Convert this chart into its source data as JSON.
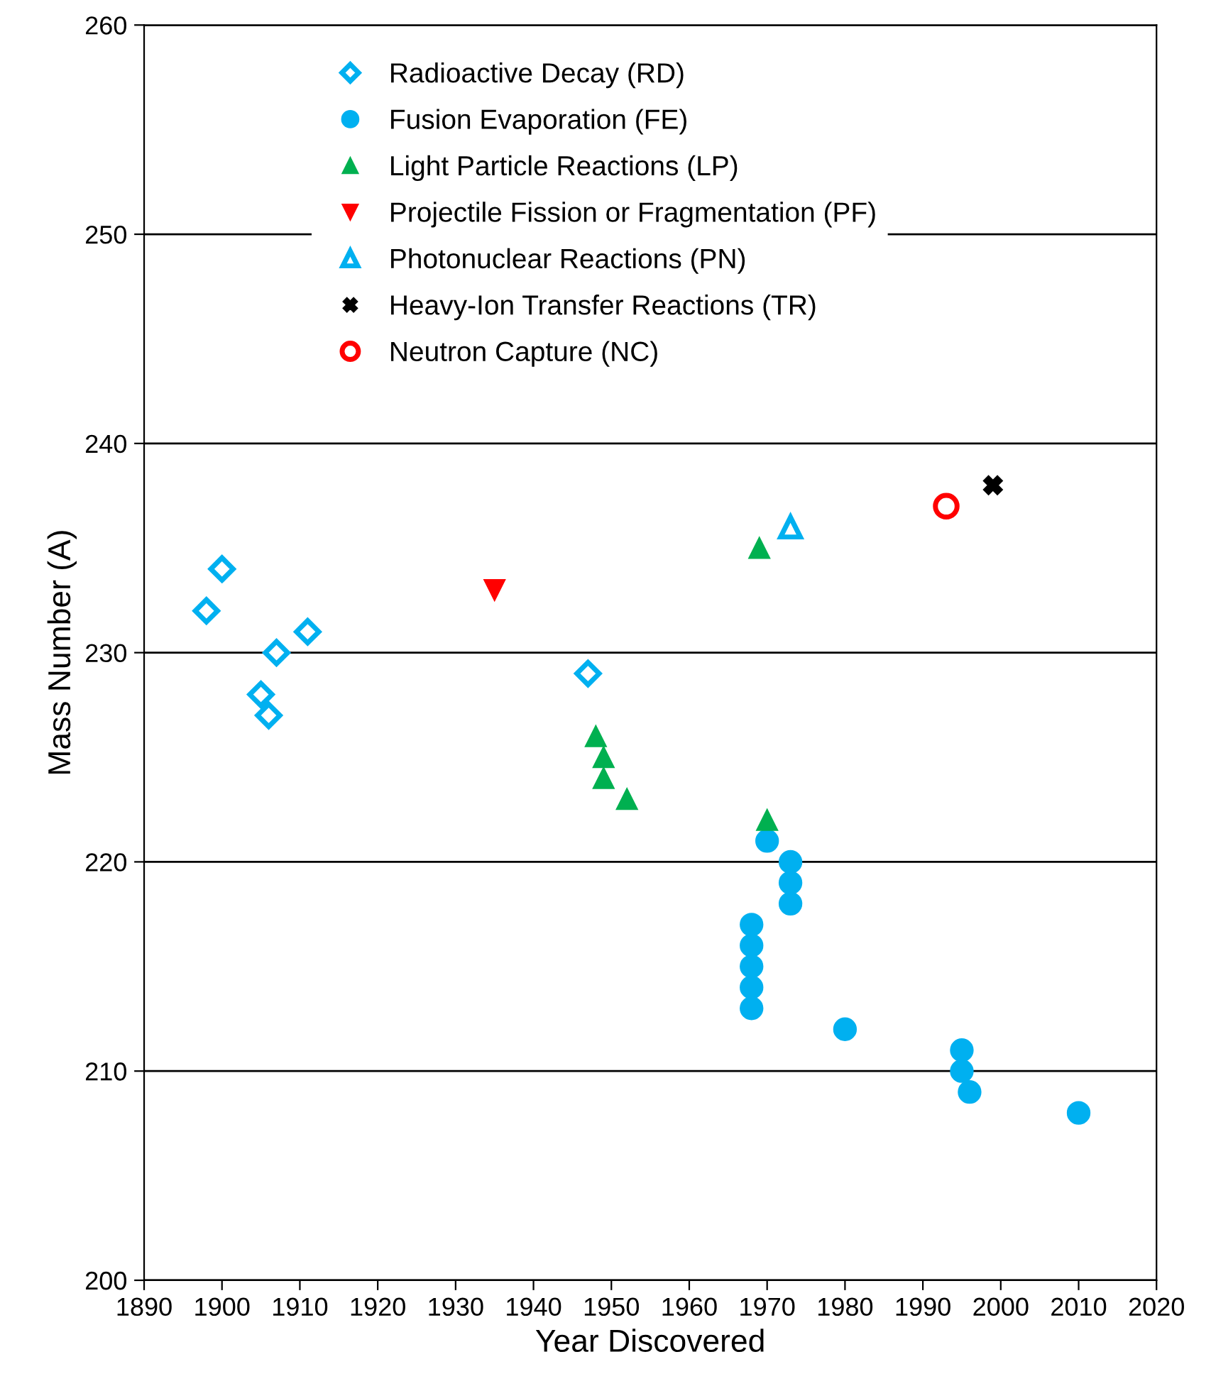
{
  "chart_data": {
    "type": "scatter",
    "xlabel": "Year Discovered",
    "ylabel": "Mass Number (A)",
    "xlim": [
      1890,
      2020
    ],
    "xticks": [
      1890,
      1900,
      1910,
      1920,
      1930,
      1940,
      1950,
      1960,
      1970,
      1980,
      1990,
      2000,
      2010,
      2020
    ],
    "ylim": [
      200,
      260
    ],
    "yticks": [
      200,
      210,
      220,
      230,
      240,
      250,
      260
    ],
    "grid": "y",
    "legend": "top",
    "series": [
      {
        "name": "Radioactive Decay (RD)",
        "color": "#00b0f0",
        "marker": "diamond_open",
        "x": [
          1898,
          1900,
          1905,
          1906,
          1907,
          1911,
          1947
        ],
        "values": [
          232,
          234,
          228,
          227,
          230,
          231,
          229
        ]
      },
      {
        "name": "Fusion Evaporation (FE)",
        "color": "#00b0f0",
        "marker": "circle",
        "x": [
          1968,
          1968,
          1968,
          1968,
          1968,
          1970,
          1973,
          1973,
          1973,
          1980,
          1995,
          1995,
          1996,
          2010
        ],
        "values": [
          213,
          214,
          215,
          216,
          217,
          221,
          218,
          219,
          220,
          212,
          210,
          211,
          209,
          208
        ]
      },
      {
        "name": "Light Particle Reactions (LP)",
        "color": "#00b050",
        "marker": "triangle",
        "x": [
          1948,
          1949,
          1949,
          1952,
          1969,
          1970
        ],
        "values": [
          226,
          225,
          224,
          223,
          235,
          222
        ]
      },
      {
        "name": "Projectile Fission or Fragmentation (PF)",
        "color": "#ff0000",
        "marker": "triangle_down",
        "x": [
          1935
        ],
        "values": [
          233
        ]
      },
      {
        "name": "Photonuclear Reactions (PN)",
        "color": "#00b0f0",
        "marker": "triangle_open",
        "x": [
          1973
        ],
        "values": [
          236
        ]
      },
      {
        "name": "Heavy-Ion Transfer Reactions (TR)",
        "color": "#000000",
        "marker": "cross",
        "x": [
          1999
        ],
        "values": [
          238
        ]
      },
      {
        "name": "Neutron Capture (NC)",
        "color": "#ff0000",
        "marker": "circle_open",
        "x": [
          1993
        ],
        "values": [
          237
        ]
      }
    ]
  }
}
